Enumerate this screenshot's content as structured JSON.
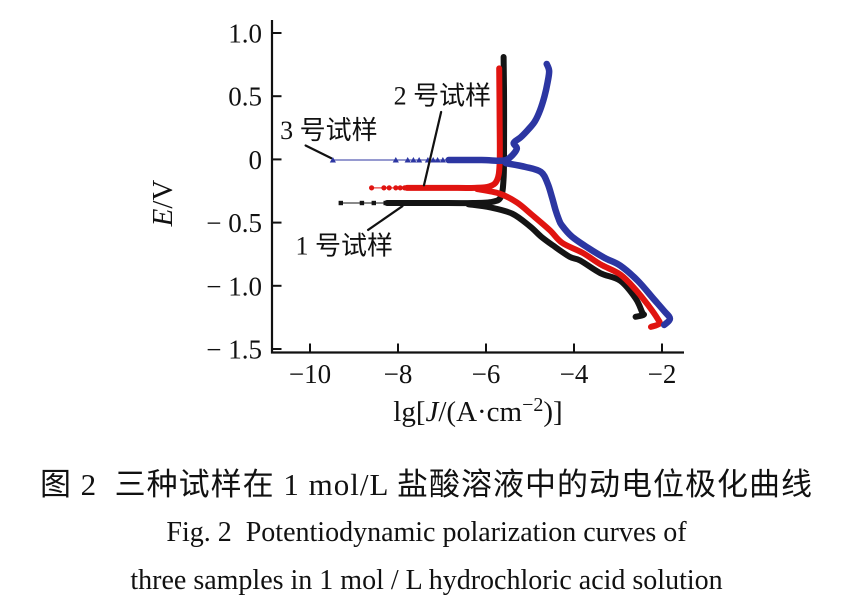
{
  "figure": {
    "caption_zh": "图 2  三种试样在 1 mol/L 盐酸溶液中的动电位极化曲线",
    "caption_en_line1": "Fig. 2  Potentiodynamic polarization curves of",
    "caption_en_line2": "three samples in 1 mol / L hydrochloric acid solution"
  },
  "chart_data": {
    "type": "line",
    "title": "",
    "xlabel": "lg[J/(A·cm⁻²)]",
    "ylabel": "E/V",
    "xlabel_parts": {
      "prefix": "lg[",
      "J": "J",
      "mid": "/(A·cm",
      "sup": "−2",
      "suffix": ")]"
    },
    "ylabel_parts": {
      "E": "E",
      "unit": "/V"
    },
    "xlim": [
      -10.9,
      -1.5
    ],
    "ylim": [
      -1.5,
      1.0
    ],
    "grid": false,
    "legend_position": "inline-annotations",
    "axis_color": "#111111",
    "xticks": [
      {
        "v": -10,
        "label": "−10"
      },
      {
        "v": -8,
        "label": "−8"
      },
      {
        "v": -6,
        "label": "−6"
      },
      {
        "v": -4,
        "label": "−4"
      },
      {
        "v": -2,
        "label": "−2"
      }
    ],
    "yticks": [
      {
        "v": 1.0,
        "label": "1.0"
      },
      {
        "v": 0.5,
        "label": "0.5"
      },
      {
        "v": 0,
        "label": "0"
      },
      {
        "v": -0.5,
        "label": "− 0.5"
      },
      {
        "v": -1.0,
        "label": "− 1.0"
      },
      {
        "v": -1.5,
        "label": "− 1.5"
      }
    ],
    "series": [
      {
        "id": "sample-1",
        "name": "1 号试样",
        "color": "#141414",
        "marker": "square",
        "width": 6,
        "ecorr_V": -0.345,
        "tail_E": -0.345,
        "tail_range_lgJ": [
          -9.3,
          -8.2
        ],
        "tail_markers_lgJ": [
          -9.3,
          -8.82,
          -8.55,
          -8.28
        ],
        "anodic": [
          [
            -8.25,
            -0.345
          ],
          [
            -7.2,
            -0.345
          ],
          [
            -6.3,
            -0.345
          ],
          [
            -5.85,
            -0.335
          ],
          [
            -5.66,
            -0.295
          ],
          [
            -5.6,
            -0.15
          ],
          [
            -5.59,
            0.1
          ],
          [
            -5.59,
            0.5
          ],
          [
            -5.6,
            0.81
          ]
        ],
        "cathodic": [
          [
            -6.4,
            -0.355
          ],
          [
            -5.9,
            -0.38
          ],
          [
            -5.4,
            -0.43
          ],
          [
            -5.0,
            -0.53
          ],
          [
            -4.75,
            -0.61
          ],
          [
            -4.48,
            -0.68
          ],
          [
            -4.1,
            -0.77
          ],
          [
            -3.86,
            -0.8
          ],
          [
            -3.4,
            -0.9
          ],
          [
            -2.95,
            -0.96
          ],
          [
            -2.6,
            -1.1
          ],
          [
            -2.45,
            -1.21
          ],
          [
            -2.42,
            -1.23
          ],
          [
            -2.6,
            -1.245
          ]
        ]
      },
      {
        "id": "sample-2",
        "name": "2 号试样",
        "color": "#e01410",
        "marker": "circle",
        "width": 6,
        "ecorr_V": -0.225,
        "tail_E": -0.225,
        "tail_range_lgJ": [
          -8.6,
          -7.8
        ],
        "tail_markers_lgJ": [
          -8.6,
          -8.32,
          -8.2,
          -8.05,
          -7.95,
          -7.85
        ],
        "anodic": [
          [
            -7.8,
            -0.225
          ],
          [
            -6.9,
            -0.225
          ],
          [
            -6.25,
            -0.225
          ],
          [
            -5.92,
            -0.213
          ],
          [
            -5.75,
            -0.165
          ],
          [
            -5.69,
            -0.03
          ],
          [
            -5.69,
            0.3
          ],
          [
            -5.7,
            0.72
          ]
        ],
        "cathodic": [
          [
            -6.2,
            -0.235
          ],
          [
            -5.7,
            -0.27
          ],
          [
            -5.3,
            -0.34
          ],
          [
            -4.95,
            -0.44
          ],
          [
            -4.55,
            -0.56
          ],
          [
            -4.27,
            -0.66
          ],
          [
            -3.8,
            -0.74
          ],
          [
            -3.4,
            -0.83
          ],
          [
            -2.95,
            -0.91
          ],
          [
            -2.6,
            -1.03
          ],
          [
            -2.3,
            -1.16
          ],
          [
            -2.1,
            -1.26
          ],
          [
            -2.06,
            -1.3
          ],
          [
            -2.25,
            -1.325
          ]
        ]
      },
      {
        "id": "sample-3",
        "name": "3 号试样",
        "color": "#2c36a2",
        "marker": "triangle",
        "width": 6.5,
        "ecorr_V": -0.005,
        "tail_E": -0.005,
        "tail_range_lgJ": [
          -9.48,
          -6.85
        ],
        "tail_markers_lgJ": [
          -9.48,
          -8.05,
          -7.78,
          -7.65,
          -7.52,
          -7.32,
          -7.2,
          -7.1,
          -6.98
        ],
        "anodic": [
          [
            -6.85,
            -0.005
          ],
          [
            -6.1,
            -0.005
          ],
          [
            -5.62,
            -0.01
          ],
          [
            -5.44,
            0.02
          ],
          [
            -5.3,
            0.085
          ],
          [
            -5.37,
            0.13
          ],
          [
            -5.21,
            0.175
          ],
          [
            -5.03,
            0.24
          ],
          [
            -4.89,
            0.3
          ],
          [
            -4.77,
            0.39
          ],
          [
            -4.67,
            0.5
          ],
          [
            -4.6,
            0.61
          ],
          [
            -4.565,
            0.7
          ],
          [
            -4.62,
            0.755
          ]
        ],
        "cathodic": [
          [
            -5.55,
            -0.03
          ],
          [
            -5.1,
            -0.06
          ],
          [
            -4.75,
            -0.1
          ],
          [
            -4.6,
            -0.19
          ],
          [
            -4.5,
            -0.3
          ],
          [
            -4.42,
            -0.4
          ],
          [
            -4.35,
            -0.47
          ],
          [
            -4.28,
            -0.52
          ],
          [
            -4.05,
            -0.61
          ],
          [
            -3.68,
            -0.7
          ],
          [
            -3.3,
            -0.78
          ],
          [
            -2.95,
            -0.84
          ],
          [
            -2.55,
            -0.96
          ],
          [
            -2.2,
            -1.1
          ],
          [
            -1.95,
            -1.2
          ],
          [
            -1.82,
            -1.26
          ],
          [
            -1.95,
            -1.31
          ]
        ]
      }
    ],
    "annotations": [
      {
        "id": "sample-2",
        "label": "2 号试样",
        "text_pos": [
          -6.99,
          0.505
        ],
        "line_from": [
          -7.02,
          0.375
        ],
        "line_to": [
          -7.41,
          -0.205
        ]
      },
      {
        "id": "sample-3",
        "label": "3 号试样",
        "text_pos": [
          -9.57,
          0.233
        ],
        "line_from": [
          -10.1,
          0.11
        ],
        "line_to": [
          -9.52,
          0.01
        ]
      },
      {
        "id": "sample-1",
        "label": "1 号试样",
        "text_pos": [
          -9.22,
          -0.68
        ],
        "line_from": [
          -8.68,
          -0.558
        ],
        "line_to": [
          -7.9,
          -0.37
        ]
      }
    ]
  }
}
